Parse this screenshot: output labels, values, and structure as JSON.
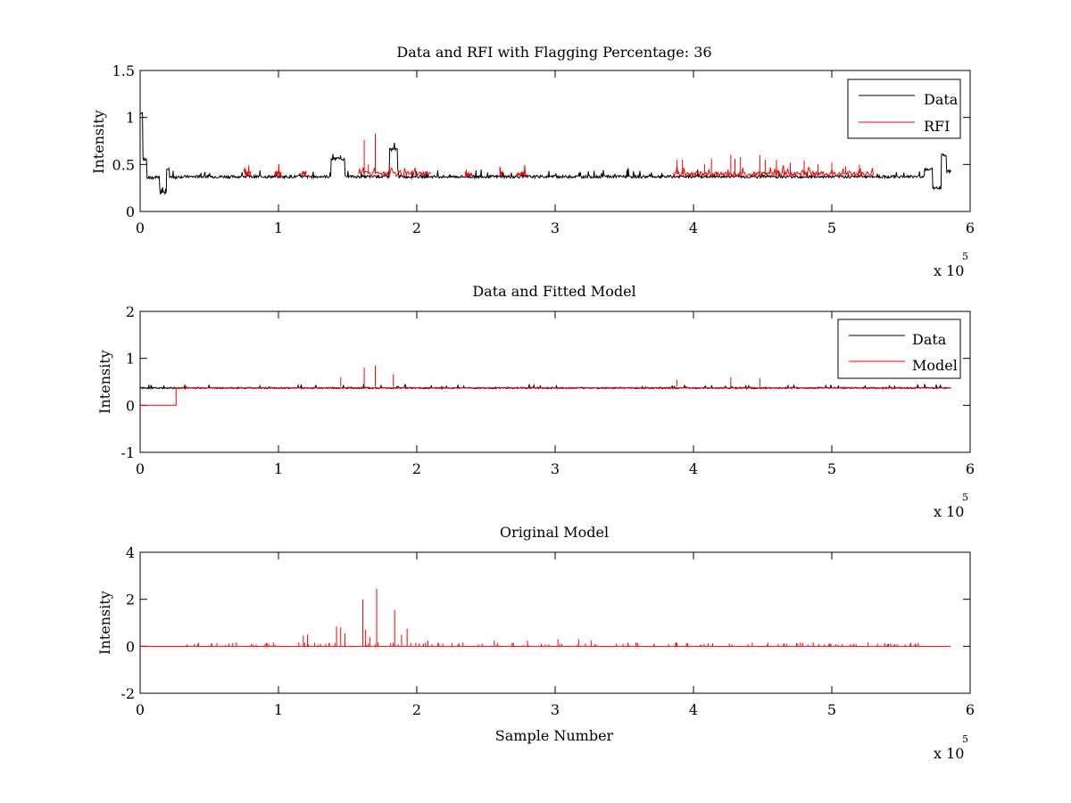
{
  "chart_data": [
    {
      "type": "line",
      "title": "Data and RFI with Flagging Percentage: 36",
      "xlabel": "",
      "ylabel": "Intensity",
      "xlim": [
        0,
        6
      ],
      "ylim": [
        0,
        1.5
      ],
      "xticks": [
        "0",
        "1",
        "2",
        "3",
        "4",
        "5",
        "6"
      ],
      "yticks": [
        "0",
        "0.5",
        "1",
        "1.5"
      ],
      "x_multiplier": {
        "base": "x 10",
        "exponent": "5"
      },
      "x_unit_note": "x values in units of 10^5 samples",
      "grid": false,
      "legend": {
        "position": "top-right",
        "entries": [
          "Data",
          "RFI"
        ]
      },
      "series": [
        {
          "name": "Data",
          "color": "#000000",
          "baseline": 0.37,
          "features": [
            {
              "x": 0.0,
              "y": 0.5
            },
            {
              "x": 0.02,
              "y": 1.05
            },
            {
              "x": 0.05,
              "y": 0.55
            },
            {
              "x": 0.08,
              "y": 0.36
            },
            {
              "x": 0.17,
              "y": 0.2
            },
            {
              "x": 0.22,
              "y": 0.45
            },
            {
              "x": 0.24,
              "y": 0.36
            },
            {
              "x": 1.41,
              "y": 0.56
            },
            {
              "x": 1.45,
              "y": 0.56
            },
            {
              "x": 1.83,
              "y": 0.66
            },
            {
              "x": 5.7,
              "y": 0.45
            },
            {
              "x": 5.76,
              "y": 0.25
            },
            {
              "x": 5.82,
              "y": 0.6
            },
            {
              "x": 5.86,
              "y": 0.43
            }
          ]
        },
        {
          "name": "RFI",
          "color": "#ff0000",
          "segments": [
            [
              0.75,
              0.8
            ],
            [
              0.97,
              1.02
            ],
            [
              1.17,
              1.2
            ],
            [
              1.58,
              2.1
            ],
            [
              2.35,
              2.4
            ],
            [
              2.6,
              2.62
            ],
            [
              2.72,
              2.8
            ],
            [
              3.85,
              5.3
            ]
          ],
          "spikes": [
            {
              "x": 1.62,
              "y": 0.76
            },
            {
              "x": 1.7,
              "y": 0.83
            },
            {
              "x": 1.65,
              "y": 0.5
            },
            {
              "x": 3.88,
              "y": 0.55
            },
            {
              "x": 3.92,
              "y": 0.55
            },
            {
              "x": 4.08,
              "y": 0.5
            },
            {
              "x": 4.13,
              "y": 0.56
            },
            {
              "x": 4.27,
              "y": 0.6
            },
            {
              "x": 4.3,
              "y": 0.56
            },
            {
              "x": 4.34,
              "y": 0.58
            },
            {
              "x": 4.48,
              "y": 0.6
            },
            {
              "x": 4.52,
              "y": 0.55
            },
            {
              "x": 4.6,
              "y": 0.55
            },
            {
              "x": 4.7,
              "y": 0.52
            },
            {
              "x": 4.8,
              "y": 0.54
            },
            {
              "x": 4.9,
              "y": 0.5
            },
            {
              "x": 5.0,
              "y": 0.52
            },
            {
              "x": 5.1,
              "y": 0.48
            },
            {
              "x": 5.2,
              "y": 0.5
            }
          ]
        }
      ]
    },
    {
      "type": "line",
      "title": "Data and Fitted Model",
      "xlabel": "",
      "ylabel": "Intensity",
      "xlim": [
        0,
        6
      ],
      "ylim": [
        -1,
        2
      ],
      "xticks": [
        "0",
        "1",
        "2",
        "3",
        "4",
        "5",
        "6"
      ],
      "yticks": [
        "-1",
        "0",
        "1",
        "2"
      ],
      "x_multiplier": {
        "base": "x 10",
        "exponent": "5"
      },
      "grid": false,
      "legend": {
        "position": "top-right",
        "entries": [
          "Data",
          "Model"
        ]
      },
      "series": [
        {
          "name": "Data",
          "color": "#000000",
          "baseline": 0.37
        },
        {
          "name": "Model",
          "color": "#ff0000",
          "step": [
            {
              "x": 0.0,
              "y": 0.0
            },
            {
              "x": 0.26,
              "y": 0.0
            },
            {
              "x": 0.26,
              "y": 0.37
            },
            {
              "x": 5.86,
              "y": 0.37
            }
          ],
          "spikes": [
            {
              "x": 1.62,
              "y": 0.8
            },
            {
              "x": 1.7,
              "y": 0.85
            },
            {
              "x": 1.45,
              "y": 0.6
            },
            {
              "x": 1.83,
              "y": 0.66
            },
            {
              "x": 3.88,
              "y": 0.55
            },
            {
              "x": 4.27,
              "y": 0.6
            },
            {
              "x": 4.48,
              "y": 0.58
            }
          ]
        }
      ]
    },
    {
      "type": "line",
      "title": "Original Model",
      "xlabel": "Sample Number",
      "ylabel": "Intensity",
      "xlim": [
        0,
        6
      ],
      "ylim": [
        -2,
        4
      ],
      "xticks": [
        "0",
        "1",
        "2",
        "3",
        "4",
        "5",
        "6"
      ],
      "yticks": [
        "-2",
        "0",
        "2",
        "4"
      ],
      "x_multiplier": {
        "base": "x 10",
        "exponent": "5"
      },
      "grid": false,
      "series": [
        {
          "name": "",
          "color": "#ff0000",
          "baseline": 0.0,
          "spikes": [
            {
              "x": 1.18,
              "y": 0.45
            },
            {
              "x": 1.21,
              "y": 0.5
            },
            {
              "x": 1.42,
              "y": 0.85
            },
            {
              "x": 1.45,
              "y": 0.8
            },
            {
              "x": 1.48,
              "y": 0.55
            },
            {
              "x": 1.61,
              "y": 2.0
            },
            {
              "x": 1.63,
              "y": 0.7
            },
            {
              "x": 1.66,
              "y": 0.4
            },
            {
              "x": 1.71,
              "y": 2.45
            },
            {
              "x": 1.84,
              "y": 1.55
            },
            {
              "x": 1.89,
              "y": 0.5
            },
            {
              "x": 1.93,
              "y": 0.75
            },
            {
              "x": 2.08,
              "y": 0.25
            },
            {
              "x": 2.56,
              "y": 0.25
            },
            {
              "x": 2.8,
              "y": 0.25
            },
            {
              "x": 3.02,
              "y": 0.3
            },
            {
              "x": 3.17,
              "y": 0.3
            },
            {
              "x": 3.26,
              "y": 0.25
            }
          ]
        }
      ]
    }
  ]
}
